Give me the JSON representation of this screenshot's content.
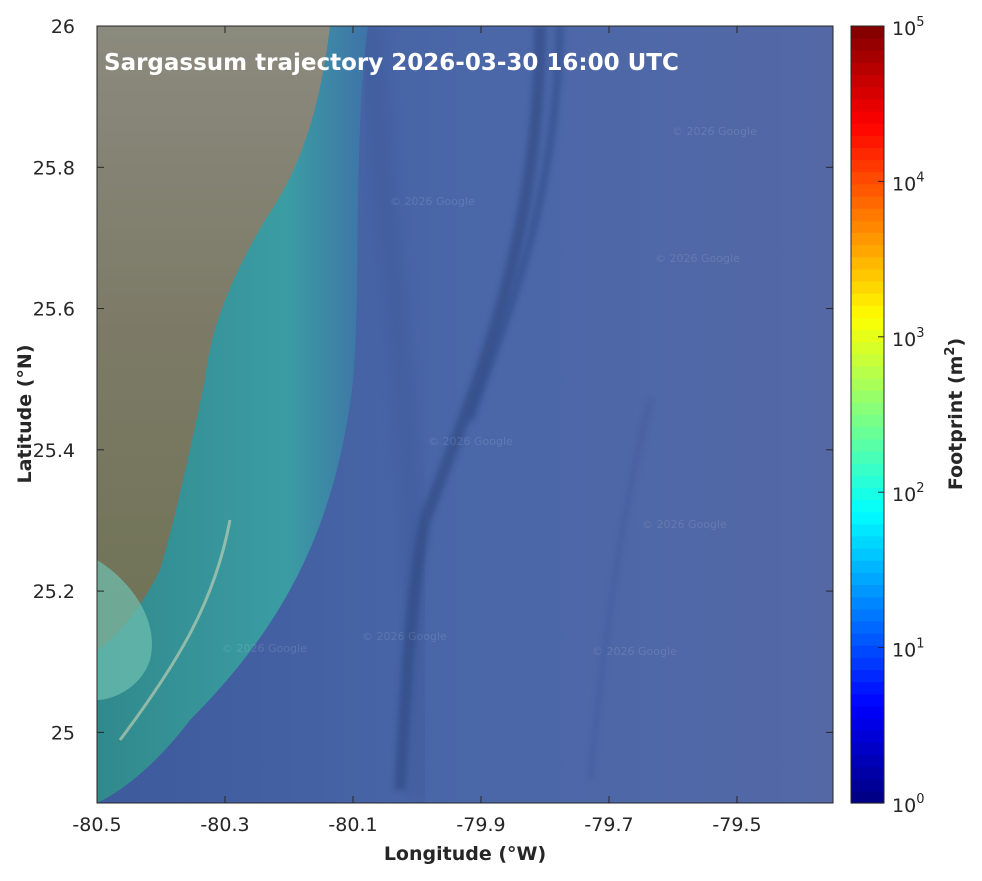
{
  "chart_data": {
    "type": "heatmap",
    "title": "Sargassum trajectory 2026-03-30 16:00 UTC",
    "xlabel": "Longitude (°W)",
    "ylabel": "Latitude (°N)",
    "xlim": [
      -80.5,
      -79.35
    ],
    "ylim": [
      24.9,
      26.0
    ],
    "xticks": [
      -80.5,
      -80.3,
      -80.1,
      -79.9,
      -79.7,
      -79.5
    ],
    "xtick_labels": [
      "-80.5",
      "-80.3",
      "-80.1",
      "-79.9",
      "-79.7",
      "-79.5"
    ],
    "yticks": [
      25.0,
      25.2,
      25.4,
      25.6,
      25.8,
      26.0
    ],
    "ytick_labels": [
      "25",
      "25.2",
      "25.4",
      "25.6",
      "25.8",
      "26"
    ],
    "basemap": "satellite imagery",
    "watermark": "© 2026 Google",
    "colorbar": {
      "label": "Footprint (m²)",
      "label_base": "Footprint (m",
      "label_sup": "2",
      "label_close": ")",
      "scale": "log",
      "colormap": "jet",
      "range": [
        1,
        100000
      ],
      "ticks": [
        {
          "base": "10",
          "exp": "0",
          "value": 1
        },
        {
          "base": "10",
          "exp": "1",
          "value": 10
        },
        {
          "base": "10",
          "exp": "2",
          "value": 100
        },
        {
          "base": "10",
          "exp": "3",
          "value": 1000
        },
        {
          "base": "10",
          "exp": "4",
          "value": 10000
        },
        {
          "base": "10",
          "exp": "5",
          "value": 100000
        }
      ]
    },
    "series": []
  }
}
